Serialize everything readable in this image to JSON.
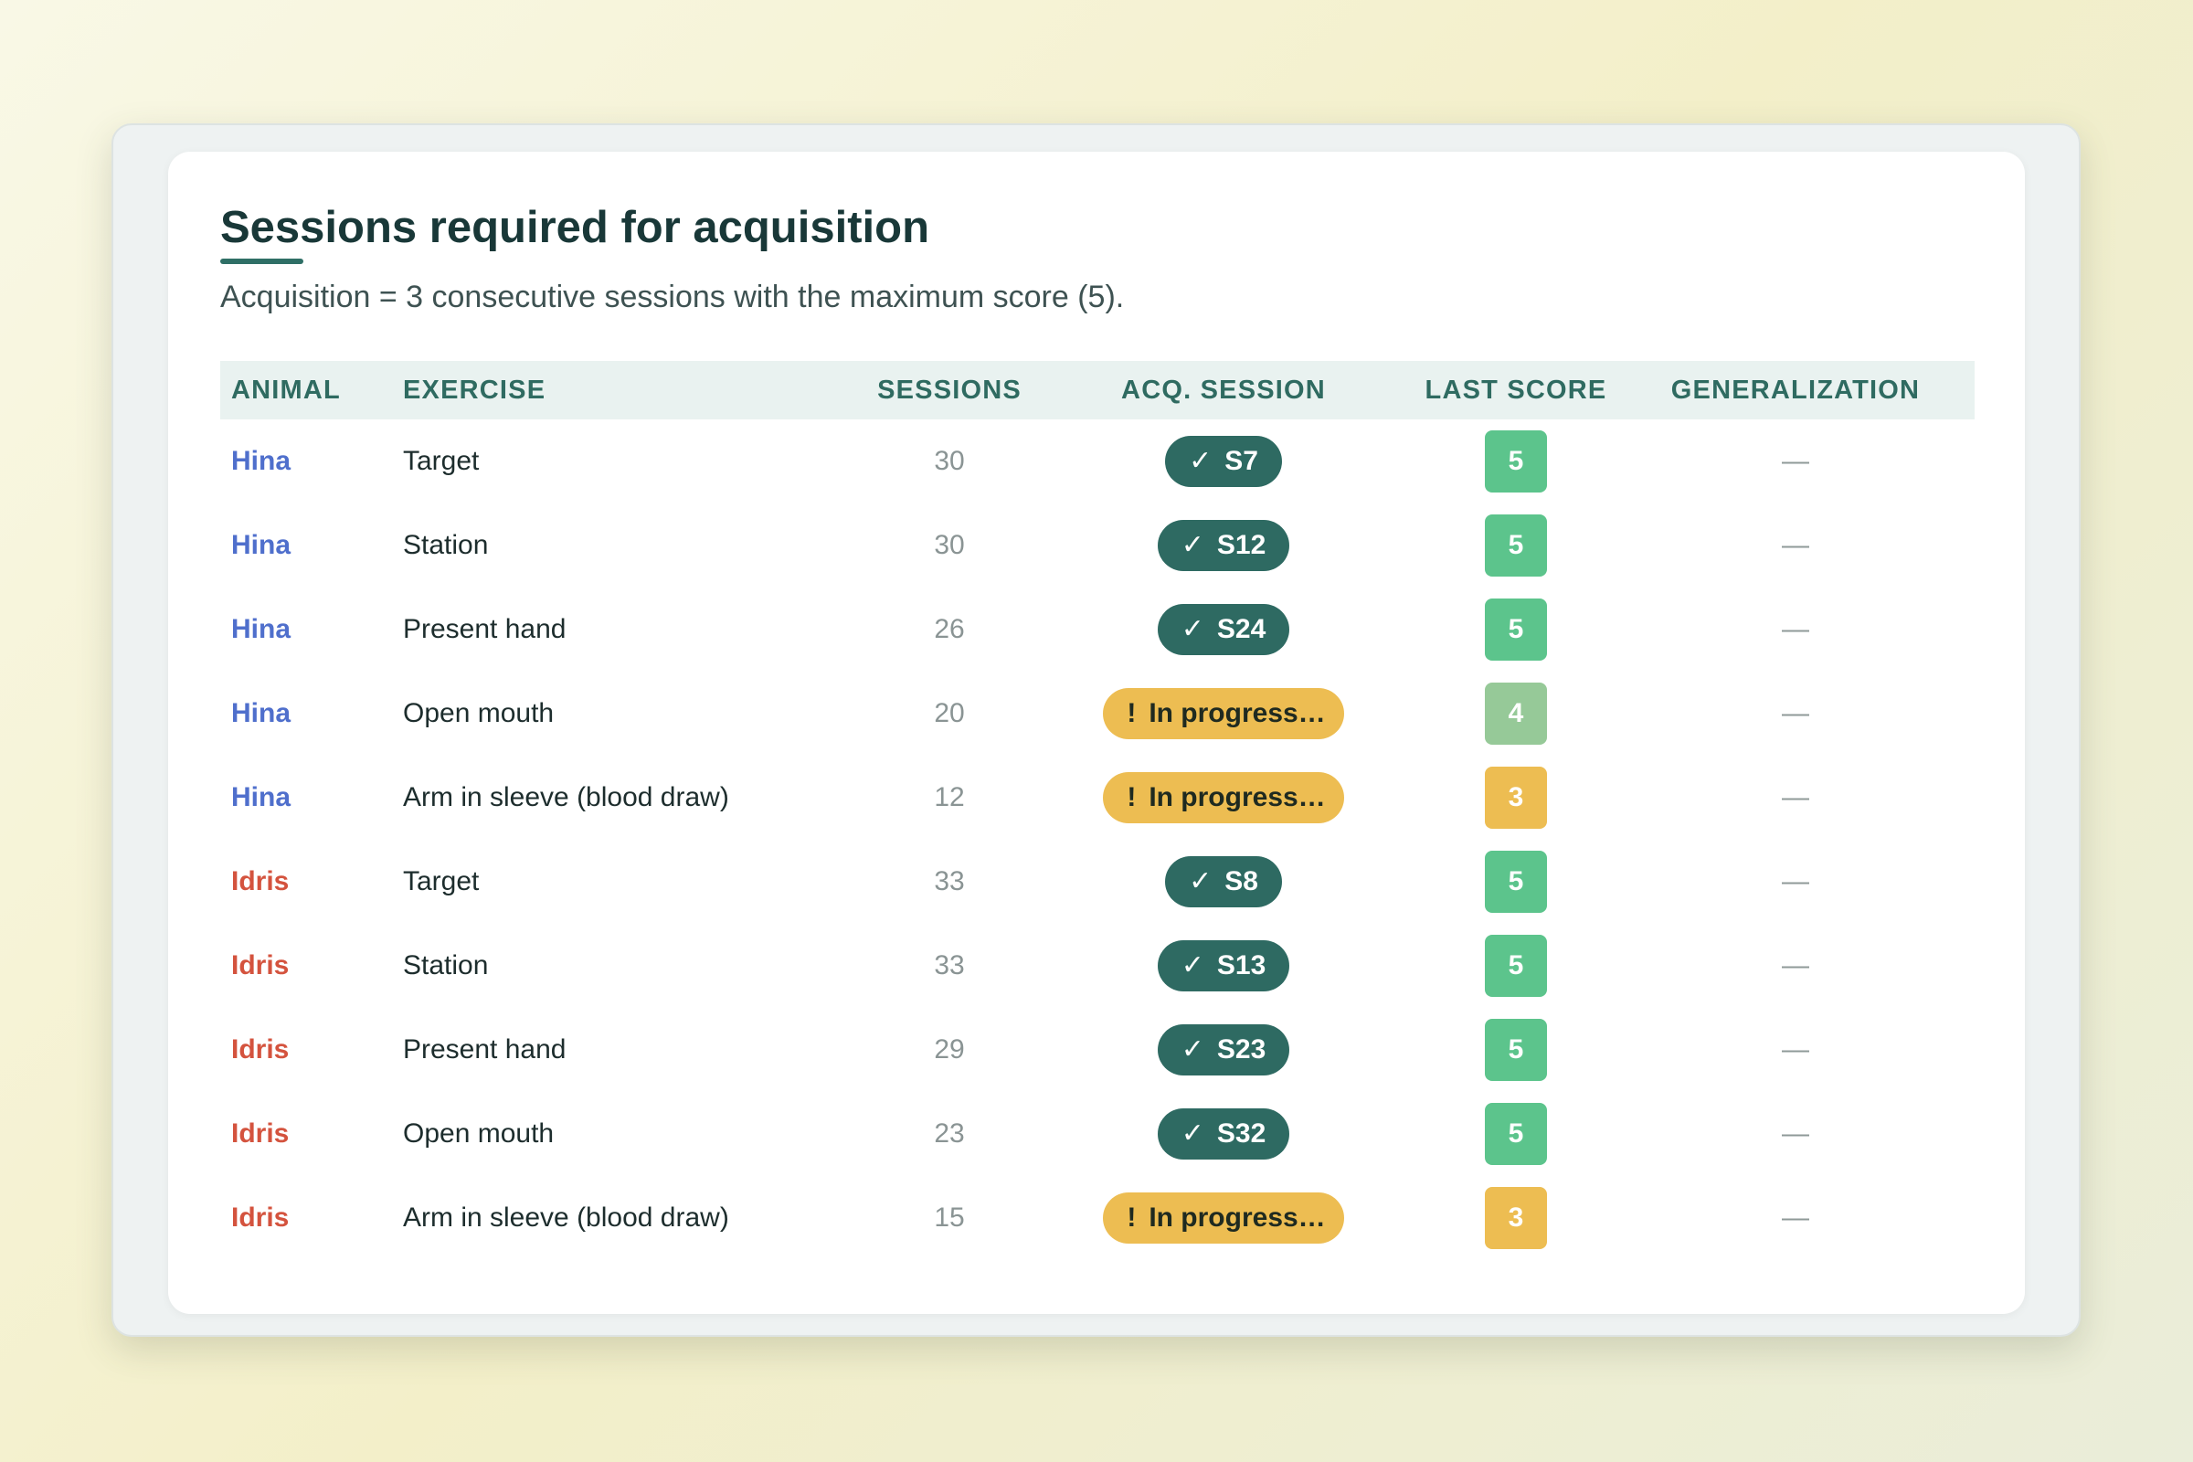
{
  "title": "Sessions required for acquisition",
  "subtitle": "Acquisition = 3 consecutive sessions with the maximum score (5).",
  "icons": {
    "acquired": "check-icon",
    "in_progress": "exclamation-icon"
  },
  "colors": {
    "animal": {
      "Hina": "#4f6fcc",
      "Idris": "#d4533e"
    },
    "score": {
      "5": "#5cc48c",
      "4": "#96c998",
      "3": "#edbd52"
    },
    "acquired_pill": "#2e6a62",
    "in_progress_pill": "#edbd52"
  },
  "table": {
    "headers": {
      "animal": "ANIMAL",
      "exercise": "EXERCISE",
      "sessions": "SESSIONS",
      "acq_session": "ACQ. SESSION",
      "last_score": "LAST SCORE",
      "generalization": "GENERALIZATION"
    },
    "rows": [
      {
        "animal": "Hina",
        "exercise": "Target",
        "sessions": "30",
        "acq_status": "acquired",
        "acq_icon": "✓",
        "acq_label": "S7",
        "last_score": "5",
        "generalization": "—"
      },
      {
        "animal": "Hina",
        "exercise": "Station",
        "sessions": "30",
        "acq_status": "acquired",
        "acq_icon": "✓",
        "acq_label": "S12",
        "last_score": "5",
        "generalization": "—"
      },
      {
        "animal": "Hina",
        "exercise": "Present hand",
        "sessions": "26",
        "acq_status": "acquired",
        "acq_icon": "✓",
        "acq_label": "S24",
        "last_score": "5",
        "generalization": "—"
      },
      {
        "animal": "Hina",
        "exercise": "Open mouth",
        "sessions": "20",
        "acq_status": "in_progress",
        "acq_icon": "!",
        "acq_label": "In progress…",
        "last_score": "4",
        "generalization": "—"
      },
      {
        "animal": "Hina",
        "exercise": "Arm in sleeve (blood draw)",
        "sessions": "12",
        "acq_status": "in_progress",
        "acq_icon": "!",
        "acq_label": "In progress…",
        "last_score": "3",
        "generalization": "—"
      },
      {
        "animal": "Idris",
        "exercise": "Target",
        "sessions": "33",
        "acq_status": "acquired",
        "acq_icon": "✓",
        "acq_label": "S8",
        "last_score": "5",
        "generalization": "—"
      },
      {
        "animal": "Idris",
        "exercise": "Station",
        "sessions": "33",
        "acq_status": "acquired",
        "acq_icon": "✓",
        "acq_label": "S13",
        "last_score": "5",
        "generalization": "—"
      },
      {
        "animal": "Idris",
        "exercise": "Present hand",
        "sessions": "29",
        "acq_status": "acquired",
        "acq_icon": "✓",
        "acq_label": "S23",
        "last_score": "5",
        "generalization": "—"
      },
      {
        "animal": "Idris",
        "exercise": "Open mouth",
        "sessions": "23",
        "acq_status": "acquired",
        "acq_icon": "✓",
        "acq_label": "S32",
        "last_score": "5",
        "generalization": "—"
      },
      {
        "animal": "Idris",
        "exercise": "Arm in sleeve (blood draw)",
        "sessions": "15",
        "acq_status": "in_progress",
        "acq_icon": "!",
        "acq_label": "In progress…",
        "last_score": "3",
        "generalization": "—"
      }
    ]
  }
}
